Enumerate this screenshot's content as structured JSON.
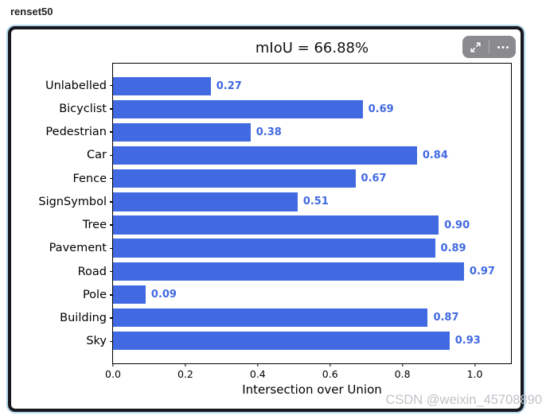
{
  "page_title": "renset50",
  "toolbar": {
    "expand_icon": "expand-icon",
    "more_icon": "more-options-icon"
  },
  "watermark": "CSDN @weixin_45708890",
  "chart_data": {
    "type": "bar",
    "orientation": "horizontal",
    "title": "mIoU = 66.88%",
    "categories": [
      "Unlabelled",
      "Bicyclist",
      "Pedestrian",
      "Car",
      "Fence",
      "SignSymbol",
      "Tree",
      "Pavement",
      "Road",
      "Pole",
      "Building",
      "Sky"
    ],
    "values": [
      0.27,
      0.69,
      0.38,
      0.84,
      0.67,
      0.51,
      0.9,
      0.89,
      0.97,
      0.09,
      0.87,
      0.93
    ],
    "value_labels": [
      "0.27",
      "0.69",
      "0.38",
      "0.84",
      "0.67",
      "0.51",
      "0.90",
      "0.89",
      "0.97",
      "0.09",
      "0.87",
      "0.93"
    ],
    "xlabel": "Intersection over Union",
    "x_ticks": [
      "0.0",
      "0.2",
      "0.4",
      "0.6",
      "0.8",
      "1.0"
    ],
    "xlim": [
      0,
      1.1
    ],
    "grid": false,
    "bar_color": "#4169e1",
    "value_label_color": "#4169e1"
  }
}
